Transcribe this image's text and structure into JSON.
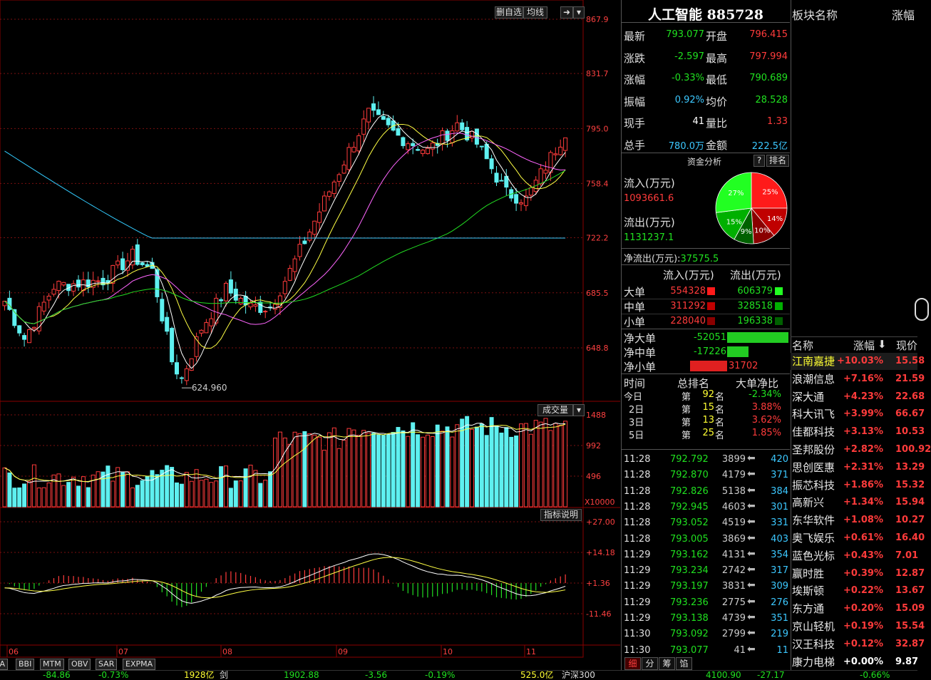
{
  "toolbar_top": {
    "del_watch": "删自选",
    "ma_line": "均线",
    "nav_arrow": "➜"
  },
  "price_axis": [
    "867.9",
    "831.7",
    "795.0",
    "758.4",
    "722.2",
    "685.5",
    "648.8"
  ],
  "low_marker": "624.960",
  "volume": {
    "title": "成交量",
    "axis": [
      "1488",
      "992",
      "496"
    ],
    "unit": "X10000"
  },
  "macd": {
    "title": "指标说明",
    "axis": [
      "+27.00",
      "+14.18",
      "+1.36",
      "-11.46"
    ]
  },
  "months": [
    "06",
    "07",
    "08",
    "09",
    "10",
    "11"
  ],
  "indicator_tabs": [
    "MA",
    "BBI",
    "MTM",
    "OBV",
    "SAR",
    "EXPMA"
  ],
  "bottom_bar": [
    "-84.86",
    "-0.73%",
    "1928亿",
    "剑",
    "1902.88",
    "-3.56",
    "-0.19%",
    "525.0亿",
    "沪深300",
    "4100.90",
    "-27.17",
    "-0.66%"
  ],
  "quote": {
    "title": "人工智能 885728",
    "rows": [
      {
        "l1": "最新",
        "v1": "793.077",
        "l2": "开盘",
        "v2": "796.415",
        "c1": "grn",
        "c2": "red"
      },
      {
        "l1": "涨跌",
        "v1": "-2.597",
        "l2": "最高",
        "v2": "797.994",
        "c1": "grn",
        "c2": "red"
      },
      {
        "l1": "涨幅",
        "v1": "-0.33%",
        "l2": "最低",
        "v2": "790.689",
        "c1": "grn",
        "c2": "grn"
      },
      {
        "l1": "振幅",
        "v1": "0.92%",
        "l2": "均价",
        "v2": "28.528",
        "c1": "cyan",
        "c2": "grn"
      },
      {
        "l1": "现手",
        "v1": "41",
        "l2": "量比",
        "v2": "1.33",
        "c1": "wht",
        "c2": "red"
      },
      {
        "l1": "总手",
        "v1": "780.0万",
        "l2": "金额",
        "v2": "222.5亿",
        "c1": "cyan",
        "c2": "cyan"
      }
    ]
  },
  "fund": {
    "title": "资金分析",
    "help": "?",
    "rank": "排名",
    "inflow_label": "流入(万元)",
    "inflow_value": "1093661.6",
    "outflow_label": "流出(万元)",
    "outflow_value": "1131237.1",
    "net_label": "净流出(万元):",
    "net_value": "37575.5",
    "pie": [
      {
        "label": "25%",
        "value": 25,
        "color": "#ff1a1a"
      },
      {
        "label": "14%",
        "value": 14,
        "color": "#c00000"
      },
      {
        "label": "10%",
        "value": 10,
        "color": "#8a0000"
      },
      {
        "label": "9%",
        "value": 9,
        "color": "#006000"
      },
      {
        "label": "15%",
        "value": 15,
        "color": "#00b000"
      },
      {
        "label": "27%",
        "value": 27,
        "color": "#22ff22"
      }
    ]
  },
  "orders": {
    "head_in": "流入(万元)",
    "head_out": "流出(万元)",
    "rows": [
      {
        "label": "大单",
        "in": "554328",
        "out": "606379"
      },
      {
        "label": "中单",
        "in": "311292",
        "out": "328518"
      },
      {
        "label": "小单",
        "in": "228040",
        "out": "196338"
      }
    ],
    "net": [
      {
        "label": "净大单",
        "value": "-52051",
        "c": "grn"
      },
      {
        "label": "净中单",
        "value": "-17226",
        "c": "grn"
      },
      {
        "label": "净小单",
        "value": "31702",
        "c": "red"
      }
    ]
  },
  "rank": {
    "head": [
      "时间",
      "总排名",
      "大单净比"
    ],
    "rows": [
      {
        "t": "今日",
        "pre": "第",
        "n": "92",
        "suf": "名",
        "r": "-2.34%",
        "c": "grn"
      },
      {
        "t": "2日",
        "pre": "第",
        "n": "15",
        "suf": "名",
        "r": "3.88%",
        "c": "red"
      },
      {
        "t": "3日",
        "pre": "第",
        "n": "13",
        "suf": "名",
        "r": "3.62%",
        "c": "red"
      },
      {
        "t": "5日",
        "pre": "第",
        "n": "25",
        "suf": "名",
        "r": "1.85%",
        "c": "red"
      }
    ]
  },
  "ticks": [
    {
      "t": "11:28",
      "p": "792.792",
      "v": "3899",
      "x": "420"
    },
    {
      "t": "11:28",
      "p": "792.870",
      "v": "4179",
      "x": "371"
    },
    {
      "t": "11:28",
      "p": "792.826",
      "v": "5138",
      "x": "384"
    },
    {
      "t": "11:28",
      "p": "792.945",
      "v": "4603",
      "x": "301"
    },
    {
      "t": "11:28",
      "p": "793.052",
      "v": "4519",
      "x": "331"
    },
    {
      "t": "11:28",
      "p": "793.005",
      "v": "3869",
      "x": "403"
    },
    {
      "t": "11:29",
      "p": "793.162",
      "v": "4131",
      "x": "354"
    },
    {
      "t": "11:29",
      "p": "793.234",
      "v": "2742",
      "x": "317"
    },
    {
      "t": "11:29",
      "p": "793.197",
      "v": "3831",
      "x": "309"
    },
    {
      "t": "11:29",
      "p": "793.236",
      "v": "2775",
      "x": "276"
    },
    {
      "t": "11:29",
      "p": "793.138",
      "v": "4739",
      "x": "351"
    },
    {
      "t": "11:30",
      "p": "793.092",
      "v": "2799",
      "x": "219"
    },
    {
      "t": "11:30",
      "p": "793.077",
      "v": "41",
      "x": "11"
    }
  ],
  "detail_tabs": [
    "细",
    "分",
    "筹",
    "馅"
  ],
  "sector": {
    "title": "板块名称",
    "title2": "涨幅",
    "cols": [
      "名称",
      "涨幅",
      "现价"
    ],
    "stocks": [
      {
        "n": "江南嘉捷",
        "c": "+10.03%",
        "p": "15.58"
      },
      {
        "n": "浪潮信息",
        "c": "+7.16%",
        "p": "21.59"
      },
      {
        "n": "深大通",
        "c": "+4.23%",
        "p": "22.68"
      },
      {
        "n": "科大讯飞",
        "c": "+3.99%",
        "p": "66.67"
      },
      {
        "n": "佳都科技",
        "c": "+3.13%",
        "p": "10.53"
      },
      {
        "n": "圣邦股份",
        "c": "+2.82%",
        "p": "100.92"
      },
      {
        "n": "思创医惠",
        "c": "+2.31%",
        "p": "13.29"
      },
      {
        "n": "振芯科技",
        "c": "+1.86%",
        "p": "15.32"
      },
      {
        "n": "高新兴",
        "c": "+1.34%",
        "p": "15.94"
      },
      {
        "n": "东华软件",
        "c": "+1.08%",
        "p": "10.27"
      },
      {
        "n": "奥飞娱乐",
        "c": "+0.61%",
        "p": "16.40"
      },
      {
        "n": "蓝色光标",
        "c": "+0.43%",
        "p": "7.01"
      },
      {
        "n": "赢时胜",
        "c": "+0.39%",
        "p": "12.87"
      },
      {
        "n": "埃斯顿",
        "c": "+0.22%",
        "p": "13.67"
      },
      {
        "n": "东方通",
        "c": "+0.20%",
        "p": "15.09"
      },
      {
        "n": "京山轻机",
        "c": "+0.19%",
        "p": "15.54"
      },
      {
        "n": "汉王科技",
        "c": "+0.12%",
        "p": "32.87"
      },
      {
        "n": "康力电梯",
        "c": "+0.00%",
        "p": "9.87"
      }
    ]
  },
  "colors": {
    "up": "#ff3b3b",
    "down": "#5ef0f0",
    "ma5": "#ffffff",
    "ma10": "#ffff44",
    "ma20": "#ff66ff",
    "ma60": "#22dd22",
    "ma120": "#33ccff"
  }
}
